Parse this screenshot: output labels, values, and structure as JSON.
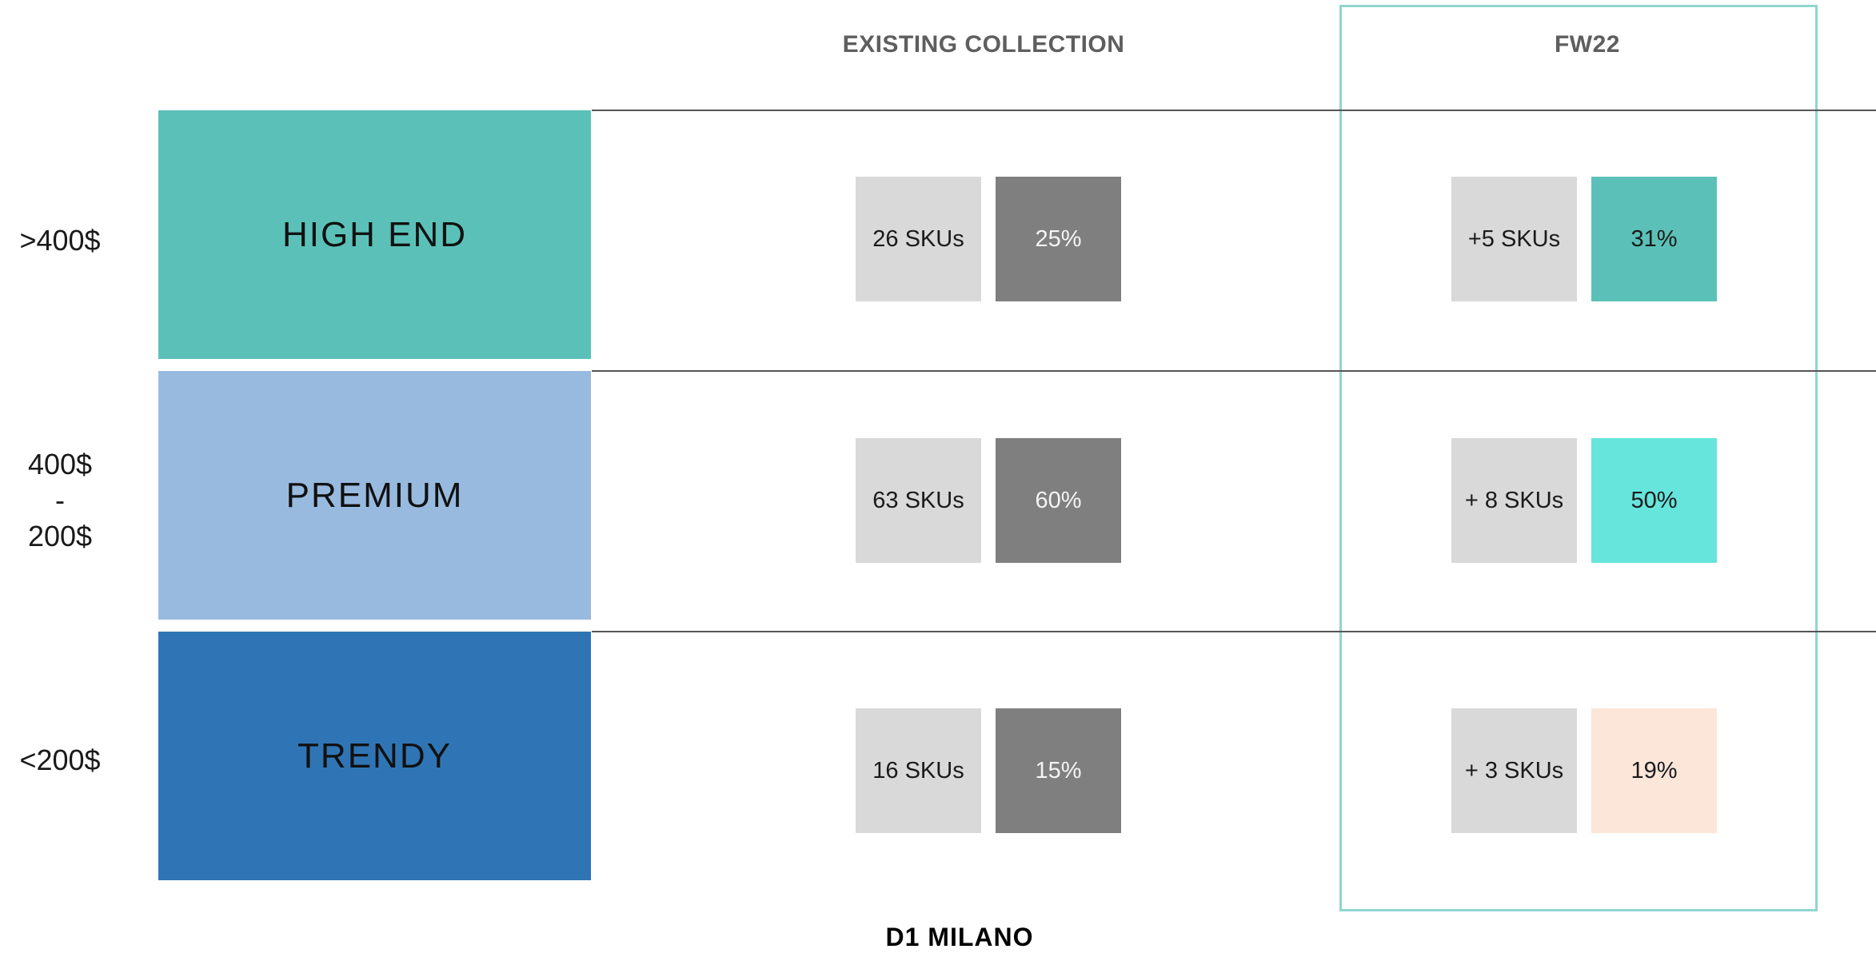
{
  "headers": {
    "existing": "EXISTING COLLECTION",
    "fw22": "FW22"
  },
  "tiers": [
    {
      "price": ">400$",
      "name": "HIGH END",
      "color": "#5bc1b8",
      "existing_skus": "26 SKUs",
      "existing_pct": "25%",
      "fw22_skus": "+5 SKUs",
      "fw22_pct": "31%",
      "fw22_color": "#5bc1b8"
    },
    {
      "price_lines": [
        "400$",
        "-",
        "200$"
      ],
      "name": "PREMIUM",
      "color": "#99badf",
      "existing_skus": "63 SKUs",
      "existing_pct": "60%",
      "fw22_skus": "+ 8 SKUs",
      "fw22_pct": "50%",
      "fw22_color": "#66e5dc"
    },
    {
      "price": "<200$",
      "name": "TRENDY",
      "color": "#2f75b5",
      "existing_skus": "16 SKUs",
      "existing_pct": "15%",
      "fw22_skus": "+ 3 SKUs",
      "fw22_pct": "19%",
      "fw22_color": "#fce6da"
    }
  ],
  "colors": {
    "sku_tile": "#d9d9d9",
    "existing_pct_tile": "#7f7f7f",
    "fw22_frame": "#8fd6cf",
    "divider": "#555555"
  },
  "footer": {
    "logo_text": "D1 MILANO"
  }
}
